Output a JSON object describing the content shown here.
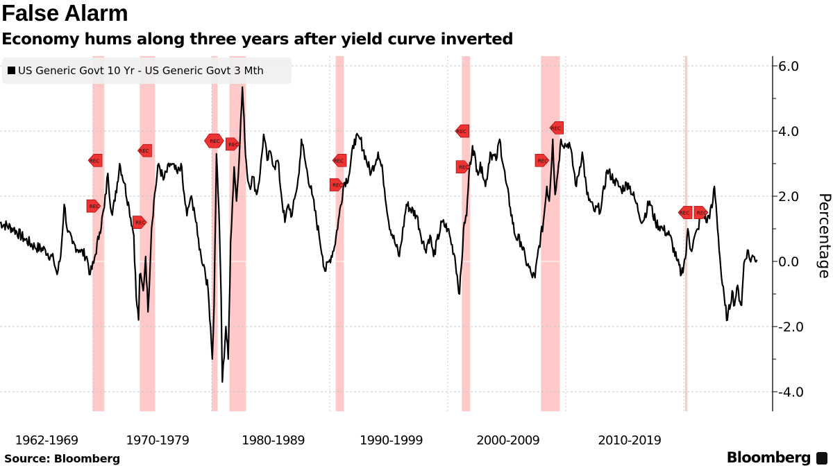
{
  "title": "False Alarm",
  "subtitle": "Economy hums along three years after yield curve inverted",
  "source": "Source: Bloomberg",
  "brand": "Bloomberg",
  "colors": {
    "line": "#000000",
    "recession_band": "#ffc0c0",
    "rec_marker": "#ee3333",
    "legend_bg": "#f0f0f0",
    "grid": "#c8c8c8"
  },
  "chart_data": {
    "type": "line",
    "title": "False Alarm",
    "subtitle": "Economy hums along three years after yield curve inverted",
    "ylabel": "Percentage",
    "xlim": [
      1962,
      2026.5
    ],
    "ylim": [
      -4.6,
      6.3
    ],
    "yticks": [
      "6.0",
      "4.0",
      "2.0",
      "0.0",
      "-2.0",
      "-4.0"
    ],
    "ytick_values": [
      6,
      4,
      2,
      0,
      -2,
      -4
    ],
    "xtick_labels": [
      "1962-1969",
      "1970-1979",
      "1980-1989",
      "1990-1999",
      "2000-2009",
      "2010-2019"
    ],
    "xtick_centers": [
      1966,
      1975.4,
      1985.2,
      1995.2,
      2005.1,
      2015.4
    ],
    "vertical_grid_years": [
      1970,
      1980,
      1990,
      2000,
      2010,
      2020
    ],
    "grid": true,
    "legend": "top-left",
    "series": [
      {
        "name": "US Generic Govt 10 Yr - US Generic Govt 3 Mth",
        "x": [
          1962.0,
          1963.2,
          1964.1,
          1965.0,
          1965.9,
          1966.6,
          1966.9,
          1967.2,
          1967.5,
          1967.8,
          1968.2,
          1968.8,
          1969.4,
          1969.7,
          1970.0,
          1970.5,
          1970.9,
          1971.2,
          1971.5,
          1971.8,
          1972.2,
          1972.6,
          1973.0,
          1973.4,
          1973.6,
          1973.8,
          1973.9,
          1974.2,
          1974.4,
          1974.6,
          1974.9,
          1975.1,
          1975.5,
          1975.9,
          1976.5,
          1977.1,
          1977.4,
          1977.6,
          1977.9,
          1978.2,
          1978.5,
          1978.8,
          1979.1,
          1979.4,
          1979.7,
          1979.9,
          1980.05,
          1980.2,
          1980.4,
          1980.6,
          1980.8,
          1980.9,
          1981.2,
          1981.4,
          1981.6,
          1981.9,
          1982.1,
          1982.4,
          1982.6,
          1982.8,
          1983.0,
          1983.2,
          1983.5,
          1983.8,
          1984.1,
          1984.4,
          1984.7,
          1985.0,
          1985.3,
          1985.6,
          1985.9,
          1986.2,
          1986.5,
          1986.8,
          1987.1,
          1987.4,
          1987.6,
          1988.0,
          1988.5,
          1989.1,
          1989.4,
          1989.6,
          1990.0,
          1990.4,
          1990.8,
          1991.2,
          1991.6,
          1992.1,
          1992.6,
          1993.1,
          1993.5,
          1994.1,
          1994.5,
          1995.0,
          1995.5,
          1995.9,
          1996.5,
          1997.4,
          1997.6,
          1998.1,
          1998.5,
          1998.8,
          1999.5,
          2000.0,
          2000.6,
          2001.0,
          2001.4,
          2001.6,
          2001.8,
          2002.1,
          2002.5,
          2002.9,
          2003.2,
          2003.6,
          2004.1,
          2004.4,
          2004.9,
          2005.3,
          2005.7,
          2006.2,
          2006.6,
          2007.1,
          2007.4,
          2007.6,
          2008.1,
          2008.4,
          2008.6,
          2008.9,
          2009.1,
          2009.4,
          2009.6,
          2010.0,
          2010.3,
          2010.9,
          2011.4,
          2011.8,
          2012.4,
          2013.0,
          2013.5,
          2014.1,
          2014.7,
          2015.3,
          2015.9,
          2016.5,
          2017.1,
          2017.6,
          2018.2,
          2018.8,
          2019.4,
          2019.8,
          2020.2,
          2020.35,
          2020.6,
          2021.2,
          2021.6,
          2021.9,
          2022.4,
          2022.6,
          2022.8,
          2023.2,
          2023.5,
          2023.7,
          2024.1,
          2024.3,
          2024.5,
          2024.9,
          2025.1,
          2025.4,
          2025.6,
          2025.9,
          2026.2
        ],
        "y": [
          1.2,
          1.0,
          0.7,
          0.45,
          0.35,
          0.05,
          -0.4,
          0.15,
          1.75,
          0.9,
          0.55,
          0.35,
          0.15,
          -0.4,
          -0.05,
          0.9,
          1.65,
          2.7,
          1.5,
          1.85,
          3.0,
          2.4,
          1.65,
          0.8,
          -1.1,
          -1.8,
          -0.4,
          -0.9,
          0.15,
          -1.55,
          1.0,
          1.85,
          3.0,
          2.5,
          3.0,
          2.7,
          3.0,
          2.2,
          1.4,
          1.95,
          1.65,
          0.8,
          0.15,
          -0.2,
          -0.9,
          -2.0,
          -3.0,
          -1.35,
          3.3,
          1.65,
          -1.1,
          -3.7,
          -2.0,
          -3.0,
          0.6,
          2.9,
          1.85,
          3.75,
          5.35,
          3.75,
          2.7,
          2.3,
          2.6,
          2.05,
          2.7,
          3.9,
          3.1,
          3.35,
          2.9,
          3.1,
          2.05,
          1.2,
          1.75,
          1.4,
          2.05,
          2.7,
          3.75,
          2.9,
          2.05,
          0.8,
          0.15,
          -0.3,
          0.05,
          0.45,
          1.4,
          2.4,
          2.6,
          3.75,
          3.75,
          3.1,
          2.7,
          3.35,
          2.7,
          1.2,
          0.6,
          0.15,
          1.75,
          1.4,
          1.0,
          0.35,
          0.8,
          0.15,
          1.2,
          1.0,
          0.15,
          -1.0,
          1.2,
          1.4,
          2.7,
          3.55,
          2.8,
          2.9,
          2.3,
          3.35,
          3.1,
          3.75,
          2.5,
          1.65,
          0.8,
          0.6,
          0.05,
          -0.4,
          -0.5,
          0.15,
          1.2,
          2.3,
          1.85,
          3.75,
          2.05,
          3.0,
          3.75,
          3.55,
          3.65,
          2.3,
          3.35,
          2.05,
          1.55,
          1.65,
          2.8,
          2.5,
          2.2,
          2.4,
          1.85,
          1.2,
          1.85,
          1.2,
          1.0,
          0.8,
          0.05,
          -0.4,
          0.25,
          1.0,
          0.35,
          1.0,
          1.65,
          1.2,
          1.65,
          2.3,
          1.4,
          -0.5,
          -1.35,
          -1.8,
          -0.9,
          -1.35,
          -0.8,
          -1.35,
          -0.05,
          0.35,
          0.05,
          0.15,
          0.05
        ]
      }
    ],
    "recessions": [
      [
        1969.9,
        1970.9
      ],
      [
        1973.9,
        1975.2
      ],
      [
        1980.0,
        1980.5
      ],
      [
        1981.5,
        1982.9
      ],
      [
        1990.5,
        1991.2
      ],
      [
        2001.2,
        2001.9
      ],
      [
        2007.9,
        2009.5
      ],
      [
        2020.1,
        2020.3
      ]
    ],
    "annotations": [
      {
        "text": "REC",
        "x": 1970.0,
        "y": 3.1,
        "dir": "left"
      },
      {
        "text": "REC",
        "x": 1970.0,
        "y": 1.7,
        "dir": "right"
      },
      {
        "text": "REC",
        "x": 1974.2,
        "y": 3.4,
        "dir": "left"
      },
      {
        "text": "REC",
        "x": 1973.9,
        "y": 1.2,
        "dir": "right"
      },
      {
        "text": "REC",
        "x": 1980.2,
        "y": 3.7,
        "dir": "both"
      },
      {
        "text": "REC",
        "x": 1981.6,
        "y": 3.6,
        "dir": "right"
      },
      {
        "text": "REC",
        "x": 1990.7,
        "y": 3.1,
        "dir": "left"
      },
      {
        "text": "REC",
        "x": 1990.6,
        "y": 2.35,
        "dir": "right"
      },
      {
        "text": "REC",
        "x": 2001.1,
        "y": 4.0,
        "dir": "left"
      },
      {
        "text": "REC",
        "x": 2001.3,
        "y": 2.9,
        "dir": "right"
      },
      {
        "text": "REC",
        "x": 2009.1,
        "y": 4.1,
        "dir": "left"
      },
      {
        "text": "REC",
        "x": 2008.0,
        "y": 3.1,
        "dir": "right"
      },
      {
        "text": "REC",
        "x": 2020.0,
        "y": 1.5,
        "dir": "left"
      },
      {
        "text": "REC",
        "x": 2020.5,
        "y": 1.5,
        "dir": "right"
      }
    ]
  }
}
